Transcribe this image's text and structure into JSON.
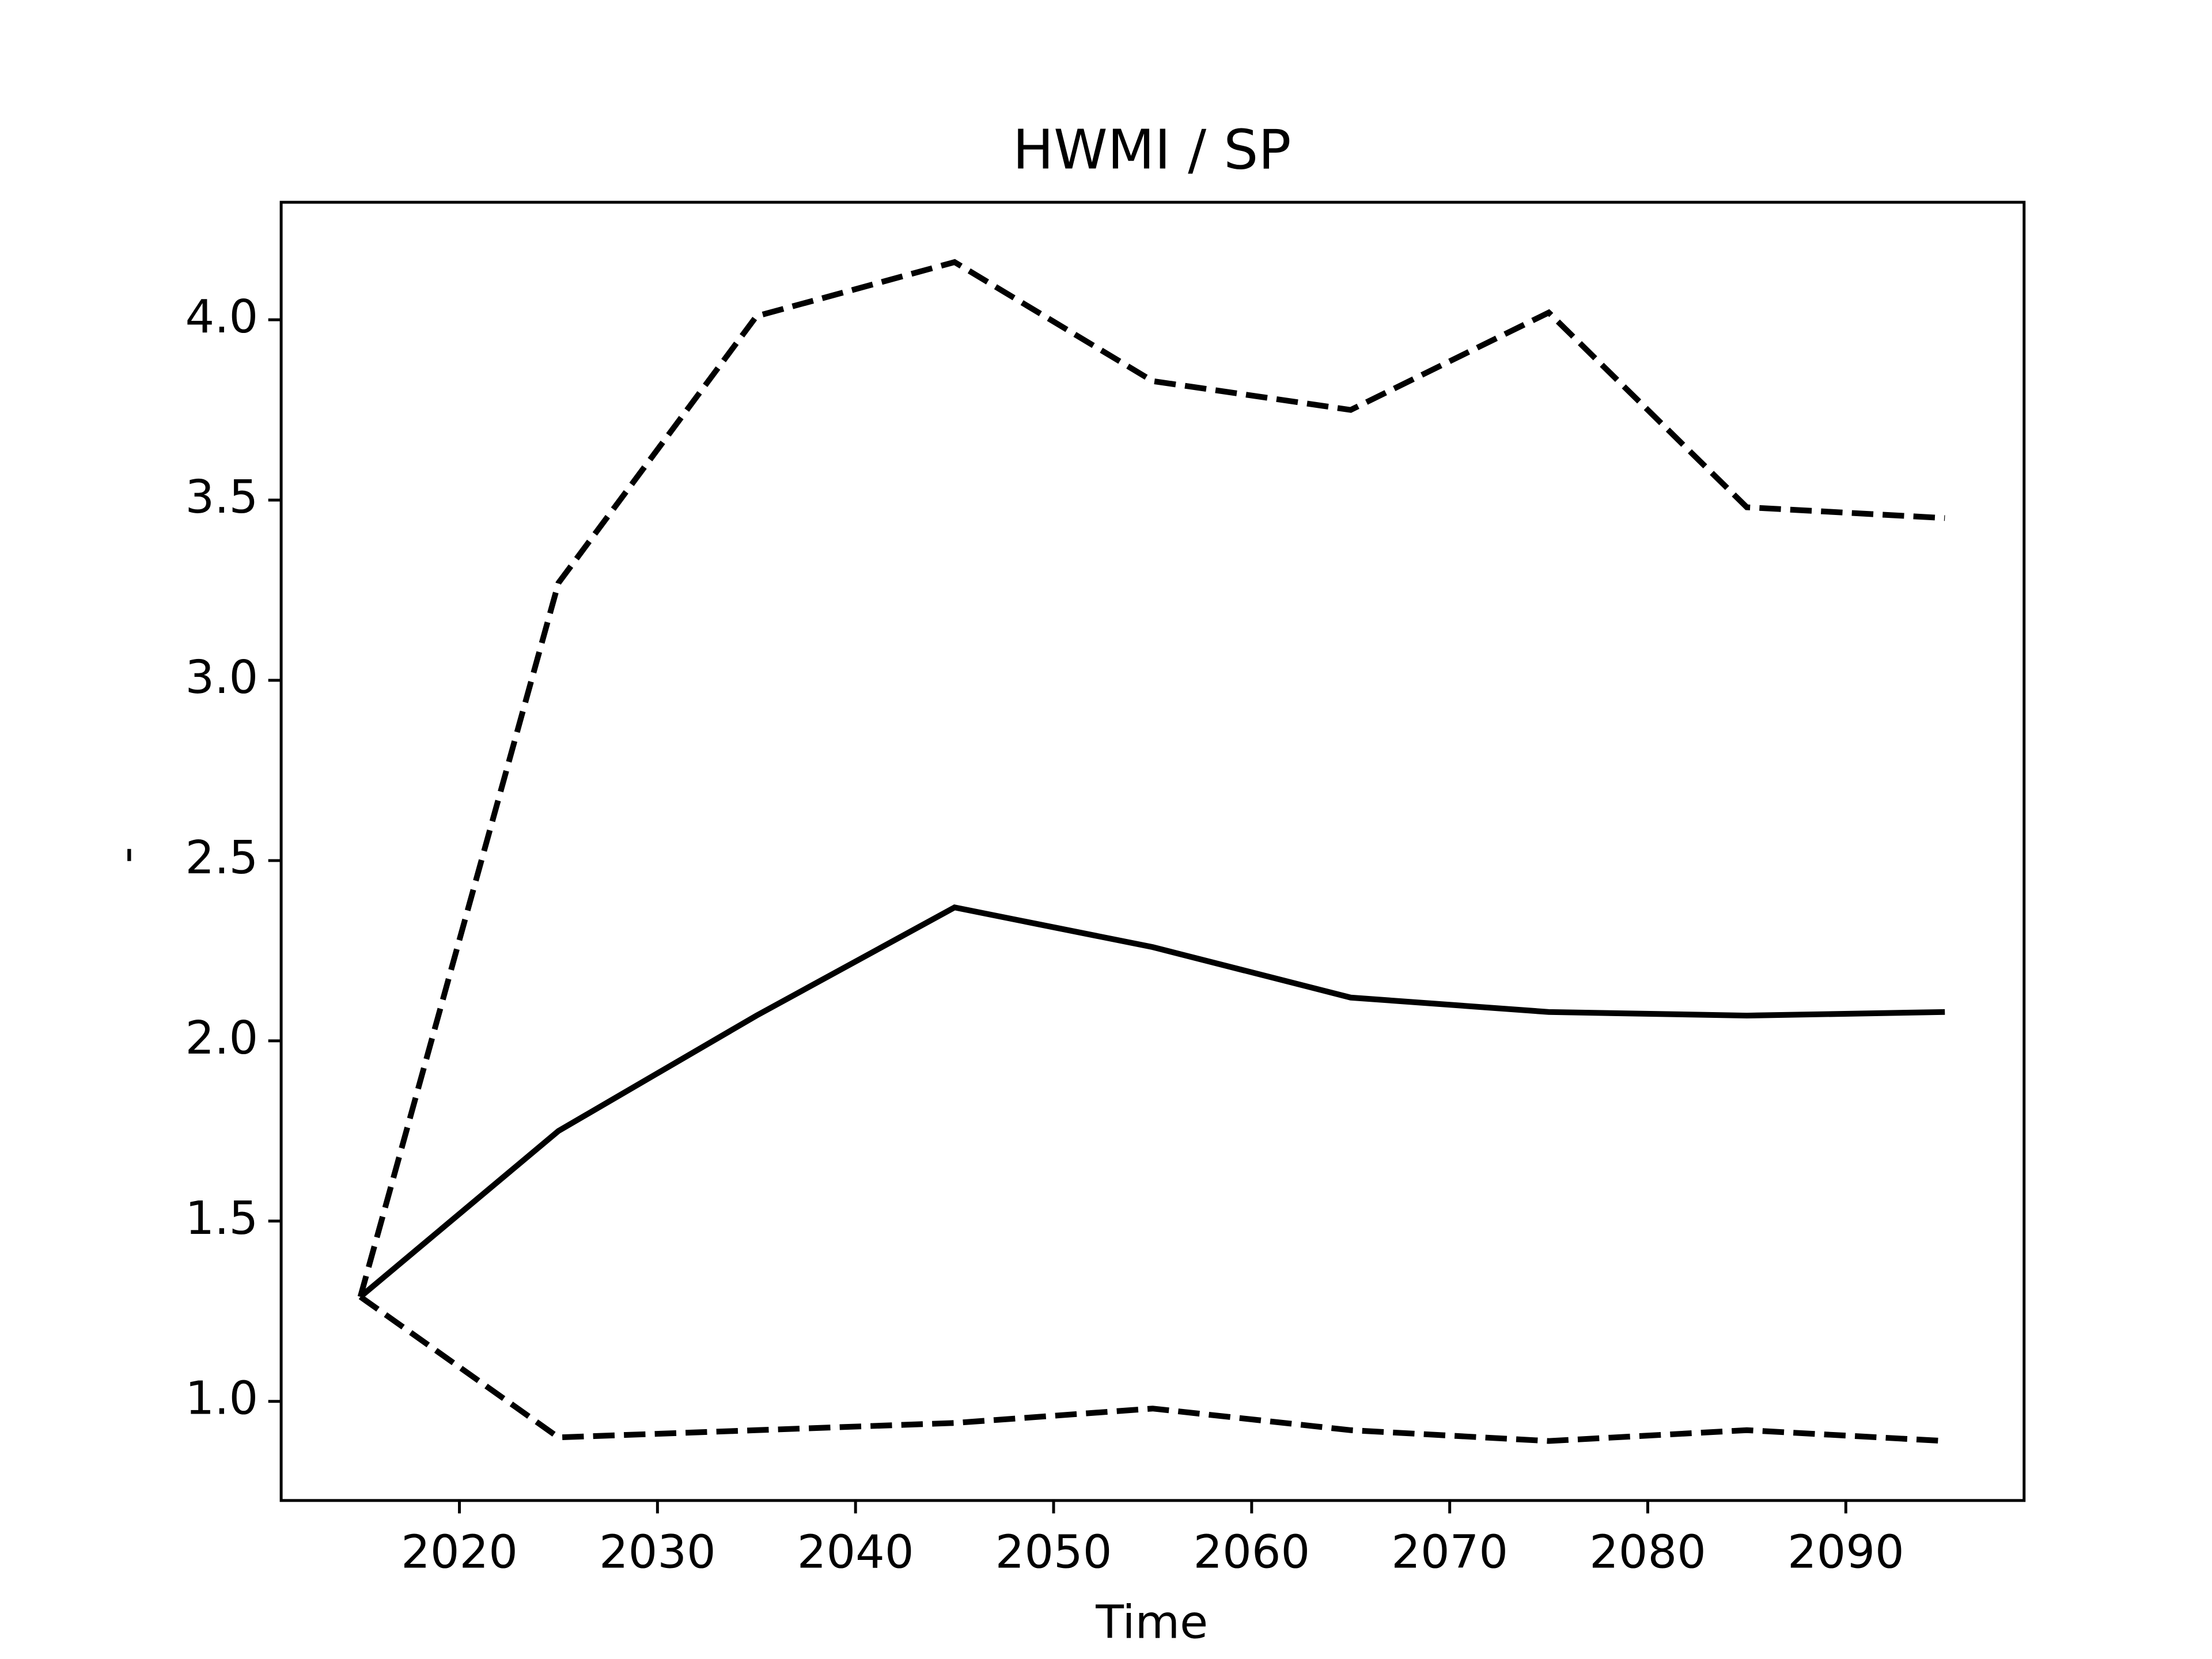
{
  "chart_data": {
    "type": "line",
    "title": "HWMI / SP",
    "x_label": "Time",
    "y_label": "-",
    "x": [
      2015,
      2025,
      2035,
      2045,
      2055,
      2065,
      2075,
      2085,
      2095
    ],
    "series": [
      {
        "color": "#000000",
        "linestyle": "solid",
        "values": [
          1.29,
          1.75,
          2.07,
          2.37,
          2.26,
          2.12,
          2.08,
          2.07,
          2.08
        ]
      },
      {
        "color": "#000000",
        "linestyle": "dashed",
        "values": [
          1.29,
          3.27,
          4.01,
          4.16,
          3.83,
          3.75,
          4.02,
          3.48,
          3.45
        ]
      },
      {
        "color": "#000000",
        "linestyle": "dashed",
        "values": [
          1.29,
          0.9,
          0.92,
          0.94,
          0.98,
          0.92,
          0.89,
          0.92,
          0.89
        ]
      }
    ],
    "xlim": [
      2011,
      2099
    ],
    "ylim": [
      0.725,
      4.326
    ],
    "xticks": [
      2020,
      2030,
      2040,
      2050,
      2060,
      2070,
      2080,
      2090
    ],
    "yticks": [
      {
        "value": 1,
        "label": "1.0"
      },
      {
        "value": 1.5,
        "label": "1.5"
      },
      {
        "value": 2,
        "label": "2.0"
      },
      {
        "value": 2.5,
        "label": "2.5"
      },
      {
        "value": 3,
        "label": "3.0"
      },
      {
        "value": 3.5,
        "label": "3.5"
      },
      {
        "value": 4,
        "label": "4.0"
      }
    ],
    "grid": false
  }
}
